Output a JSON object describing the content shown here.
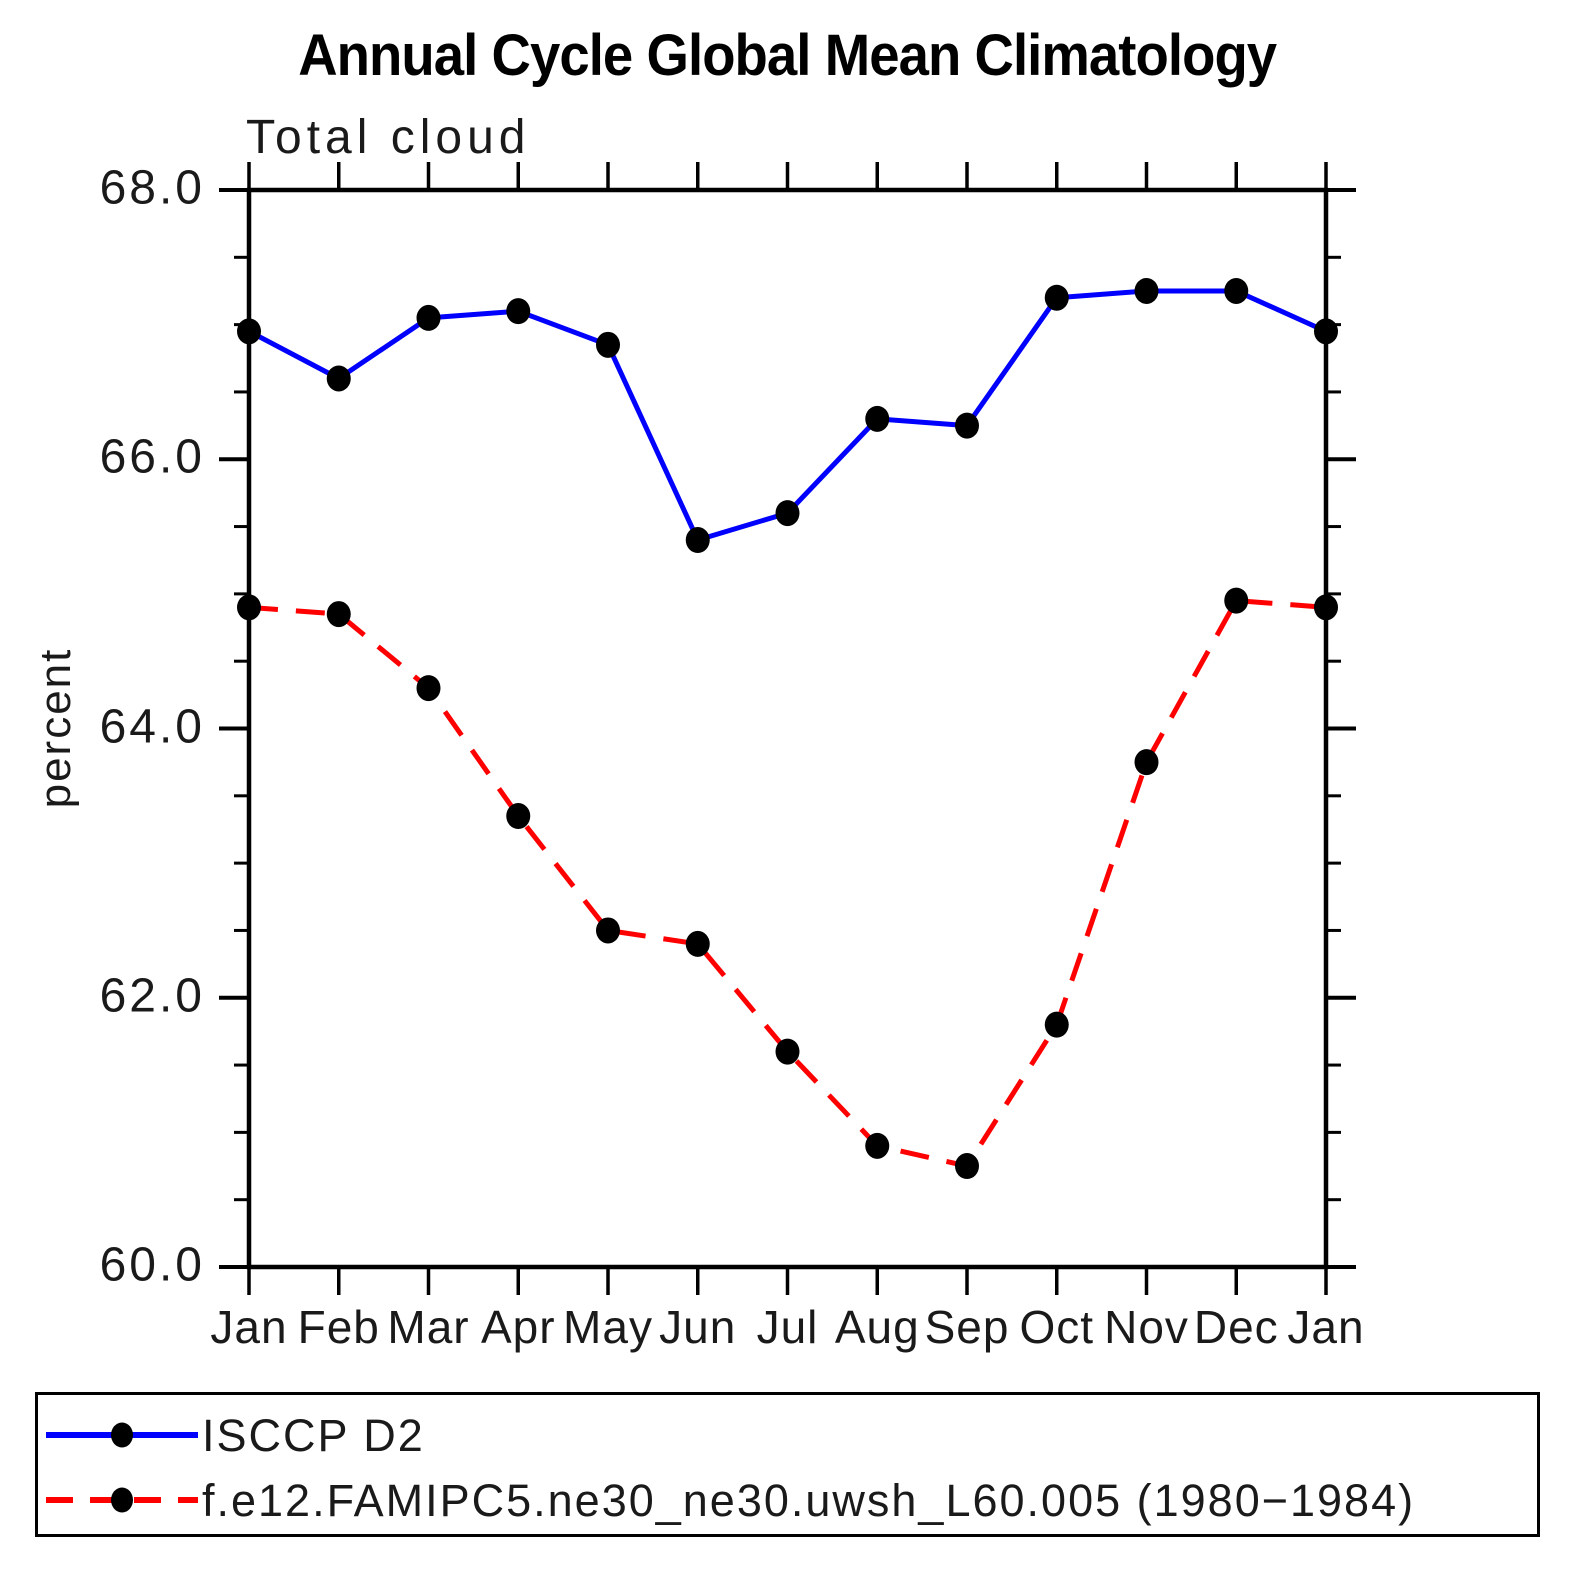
{
  "title": "Annual Cycle Global Mean Climatology",
  "plot": {
    "subtitle": "Total cloud",
    "y_axis_label": "percent",
    "y_tick_labels": [
      "68.0",
      "66.0",
      "64.0",
      "62.0",
      "60.0"
    ],
    "x_tick_labels": [
      "Jan",
      "Feb",
      "Mar",
      "Apr",
      "May",
      "Jun",
      "Jul",
      "Aug",
      "Sep",
      "Oct",
      "Nov",
      "Dec",
      "Jan"
    ],
    "axis_color": "#000000"
  },
  "legend": {
    "items": [
      {
        "label": "ISCCP D2",
        "line_color": "#0000ff",
        "line_style": "solid",
        "marker": "filled-circle",
        "marker_color": "#000000"
      },
      {
        "label": "f.e12.FAMIPC5.ne30_ne30.uwsh_L60.005 (1980−1984)",
        "line_color": "#ff0000",
        "line_style": "dashed",
        "marker": "filled-circle",
        "marker_color": "#000000"
      }
    ]
  },
  "chart_data": {
    "type": "line",
    "title": "Annual Cycle Global Mean Climatology",
    "subtitle": "Total cloud",
    "xlabel": "",
    "ylabel": "percent",
    "categories": [
      "Jan",
      "Feb",
      "Mar",
      "Apr",
      "May",
      "Jun",
      "Jul",
      "Aug",
      "Sep",
      "Oct",
      "Nov",
      "Dec",
      "Jan"
    ],
    "series": [
      {
        "name": "ISCCP D2",
        "color": "#0000ff",
        "style": "solid",
        "marker": "circle",
        "marker_color": "#000000",
        "values": [
          66.95,
          66.6,
          67.05,
          67.1,
          66.85,
          65.4,
          65.6,
          66.3,
          66.25,
          67.2,
          67.25,
          67.25,
          66.95
        ]
      },
      {
        "name": "f.e12.FAMIPC5.ne30_ne30.uwsh_L60.005 (1980−1984)",
        "color": "#ff0000",
        "style": "dashed",
        "marker": "circle",
        "marker_color": "#000000",
        "values": [
          64.9,
          64.85,
          64.3,
          63.35,
          62.5,
          62.4,
          61.6,
          60.9,
          60.75,
          61.8,
          63.75,
          64.95,
          64.9
        ]
      }
    ],
    "ylim": [
      60.0,
      68.0
    ],
    "y_major_tick_step": 2.0,
    "y_minor_tick_step": 0.5,
    "grid": false,
    "legend_position": "bottom-left-box"
  }
}
